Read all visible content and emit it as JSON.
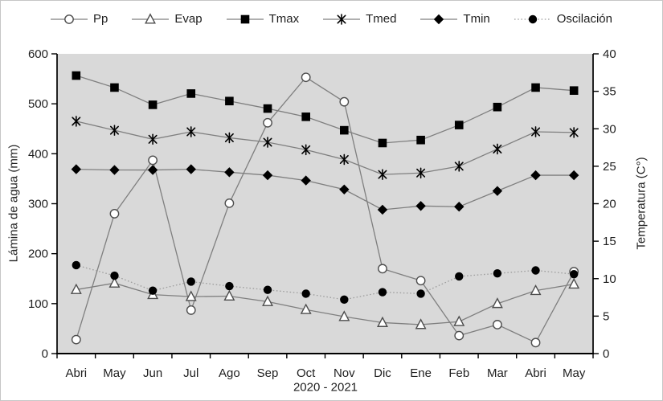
{
  "chart_data": {
    "type": "line",
    "title": "",
    "xlabel": "2020 - 2021",
    "ylabel_left": "Lámina de agua (mm)",
    "ylabel_right": "Temperatura (C°)",
    "ylim_left": [
      0,
      600
    ],
    "ylim_right": [
      0,
      40
    ],
    "left_ticks": [
      0,
      100,
      200,
      300,
      400,
      500,
      600
    ],
    "right_ticks": [
      0,
      5,
      10,
      15,
      20,
      25,
      30,
      35,
      40
    ],
    "grid": "off",
    "legend_position": "top",
    "categories": [
      "Abri",
      "May",
      "Jun",
      "Jul",
      "Ago",
      "Sep",
      "Oct",
      "Nov",
      "Dic",
      "Ene",
      "Feb",
      "Mar",
      "Abri",
      "May"
    ],
    "series": [
      {
        "name": "Pp",
        "axis": "left",
        "unit": "mm",
        "marker": "circle-open",
        "line": "solid",
        "values": [
          28,
          280,
          387,
          87,
          301,
          462,
          553,
          504,
          170,
          146,
          36,
          58,
          22,
          164
        ]
      },
      {
        "name": "Evap",
        "axis": "left",
        "unit": "mm",
        "marker": "triangle-open",
        "line": "solid",
        "values": [
          128,
          141,
          118,
          114,
          115,
          104,
          88,
          74,
          62,
          58,
          64,
          100,
          126,
          139
        ]
      },
      {
        "name": "Tmax",
        "axis": "right",
        "unit": "C°",
        "marker": "square-filled",
        "line": "solid",
        "values": [
          37.1,
          35.5,
          33.2,
          34.7,
          33.7,
          32.7,
          31.6,
          29.8,
          28.1,
          28.5,
          30.5,
          32.9,
          35.5,
          35.1
        ]
      },
      {
        "name": "Tmed",
        "axis": "right",
        "unit": "C°",
        "marker": "asterisk",
        "line": "solid",
        "values": [
          31.0,
          29.8,
          28.6,
          29.6,
          28.8,
          28.2,
          27.2,
          25.9,
          23.9,
          24.1,
          25.0,
          27.3,
          29.6,
          29.5
        ]
      },
      {
        "name": "Tmin",
        "axis": "right",
        "unit": "C°",
        "marker": "diamond-filled",
        "line": "solid",
        "values": [
          24.6,
          24.5,
          24.5,
          24.6,
          24.2,
          23.8,
          23.1,
          21.9,
          19.2,
          19.7,
          19.6,
          21.7,
          23.8,
          23.8
        ]
      },
      {
        "name": "Oscilación",
        "axis": "right",
        "unit": "C°",
        "marker": "circle-filled",
        "line": "dotted",
        "values": [
          11.8,
          10.4,
          8.4,
          9.6,
          9.0,
          8.5,
          8.0,
          7.2,
          8.2,
          8.0,
          10.3,
          10.7,
          11.1,
          10.6
        ]
      }
    ],
    "colors": {
      "plot_bg": "#d9d9d9",
      "line": "#7f7f7f",
      "dotted_line": "#9e9e9e",
      "marker_fill": "#000000",
      "marker_open_fill": "#ffffff",
      "marker_open_stroke": "#4d4d4d",
      "axis": "#000000",
      "text": "#1f1f1f"
    }
  }
}
